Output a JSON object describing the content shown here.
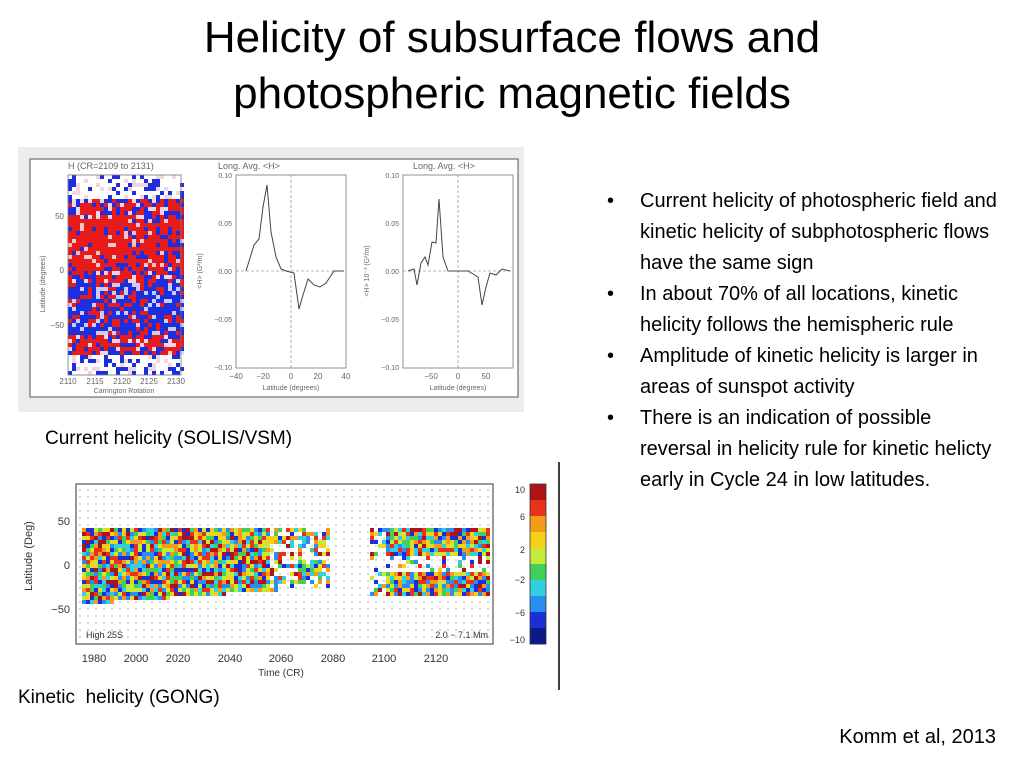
{
  "title_line1": "Helicity of subsurface flows and",
  "title_line2": "photospheric magnetic fields",
  "figure1": {
    "map": {
      "title": "H (CR=2109 to 2131)",
      "ylabel": "Latitude (degrees)",
      "xlabel": "Carrington Rotation",
      "yticks": [
        "50",
        "0",
        "−50"
      ],
      "xticks": [
        "2110",
        "2115",
        "2120",
        "2125",
        "2130"
      ]
    },
    "plot1": {
      "title": "Long. Avg. <H>",
      "ylabel": "<H> (G²/m)",
      "xlabel": "Latitude (degrees)",
      "yticks": [
        "0.10",
        "0.05",
        "0.00",
        "−0.05",
        "−0.10"
      ],
      "xticks": [
        "−40",
        "−20",
        "0",
        "20",
        "40"
      ]
    },
    "plot2": {
      "title": "Long. Avg. <H>",
      "ylabel": "<H> 10⁻³ (G²/m)",
      "xlabel": "Latitude (degrees)",
      "yticks": [
        "0.10",
        "0.05",
        "0.00",
        "−0.05",
        "−0.10"
      ],
      "xticks": [
        "−50",
        "0",
        "50"
      ]
    },
    "caption": "Current helicity (SOLIS/VSM)"
  },
  "figure2": {
    "ylabel": "Latitude (Deg)",
    "xlabel": "Time (CR)",
    "yticks": [
      "50",
      "0",
      "−50"
    ],
    "xticks": [
      "1980",
      "2000",
      "2020",
      "2040",
      "2060",
      "2080",
      "2100",
      "2120"
    ],
    "annotation_left": "High 25S",
    "annotation_right": "2.0 − 7.1 Mm",
    "colorbar_ticks": [
      "10",
      "6",
      "2",
      "−2",
      "−6",
      "−10"
    ],
    "caption": "Kinetic  helicity (GONG)"
  },
  "bullets": [
    "Current helicity of photospheric field and kinetic helicity of subphotospheric flows have the same sign",
    "In about 70% of all locations, kinetic helicity follows the hemispheric rule",
    "Amplitude of kinetic helicity is larger in areas of sunspot activity",
    "There is an indication of possible reversal in helicity rule for kinetic helicty early in Cycle 24 in low latitudes."
  ],
  "citation": "Komm et al, 2013"
}
